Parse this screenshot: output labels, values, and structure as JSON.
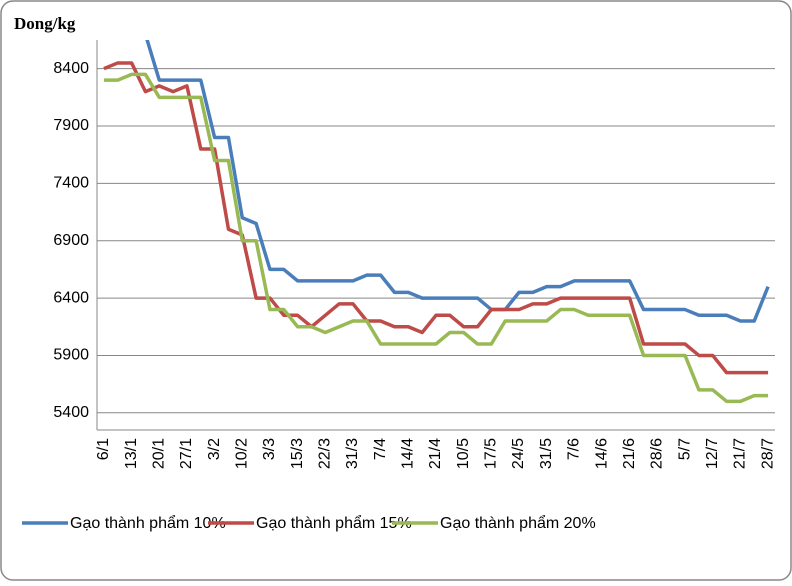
{
  "chart_data": {
    "type": "line",
    "y_axis_label": "Dong/kg",
    "categories": [
      "6/1",
      null,
      "13/1",
      null,
      "20/1",
      null,
      "27/1",
      null,
      "3/2",
      null,
      "10/2",
      null,
      "3/3",
      null,
      "15/3",
      null,
      "22/3",
      null,
      "31/3",
      null,
      "7/4",
      null,
      "14/4",
      null,
      "21/4",
      null,
      "10/5",
      null,
      "17/5",
      null,
      "24/5",
      null,
      "31/5",
      null,
      "7/6",
      null,
      "14/6",
      null,
      "21/6",
      null,
      "28/6",
      null,
      "5/7",
      null,
      "12/7",
      null,
      "21/7",
      null,
      "28/7"
    ],
    "series": [
      {
        "name": "Gạo thành phẩm 10%",
        "color": "#4a7ebb",
        "values": [
          8900,
          8850,
          8800,
          8700,
          8300,
          8300,
          8300,
          8300,
          7800,
          7800,
          7100,
          7050,
          6650,
          6650,
          6550,
          6550,
          6550,
          6550,
          6550,
          6600,
          6600,
          6450,
          6450,
          6400,
          6400,
          6400,
          6400,
          6400,
          6300,
          6300,
          6450,
          6450,
          6500,
          6500,
          6550,
          6550,
          6550,
          6550,
          6550,
          6300,
          6300,
          6300,
          6300,
          6250,
          6250,
          6250,
          6200,
          6200,
          6500
        ]
      },
      {
        "name": "Gạo thành phẩm 15%",
        "color": "#be4b48",
        "values": [
          8400,
          8450,
          8450,
          8200,
          8250,
          8200,
          8250,
          7700,
          7700,
          7000,
          6950,
          6400,
          6400,
          6250,
          6250,
          6150,
          6250,
          6350,
          6350,
          6200,
          6200,
          6150,
          6150,
          6100,
          6250,
          6250,
          6150,
          6150,
          6300,
          6300,
          6300,
          6350,
          6350,
          6400,
          6400,
          6400,
          6400,
          6400,
          6400,
          6000,
          6000,
          6000,
          6000,
          5900,
          5900,
          5750,
          5750,
          5750,
          5750
        ]
      },
      {
        "name": "Gạo thành phẩm 20%",
        "color": "#98b954",
        "values": [
          8300,
          8300,
          8350,
          8350,
          8150,
          8150,
          8150,
          8150,
          7600,
          7600,
          6900,
          6900,
          6300,
          6300,
          6150,
          6150,
          6100,
          6150,
          6200,
          6200,
          6000,
          6000,
          6000,
          6000,
          6000,
          6100,
          6100,
          6000,
          6000,
          6200,
          6200,
          6200,
          6200,
          6300,
          6300,
          6250,
          6250,
          6250,
          6250,
          5900,
          5900,
          5900,
          5900,
          5600,
          5600,
          5500,
          5500,
          5550,
          5550
        ]
      }
    ],
    "ylim": [
      5250,
      8650
    ],
    "yticks": [
      5400,
      5900,
      6400,
      6900,
      7400,
      7900,
      8400
    ],
    "grid": true
  }
}
